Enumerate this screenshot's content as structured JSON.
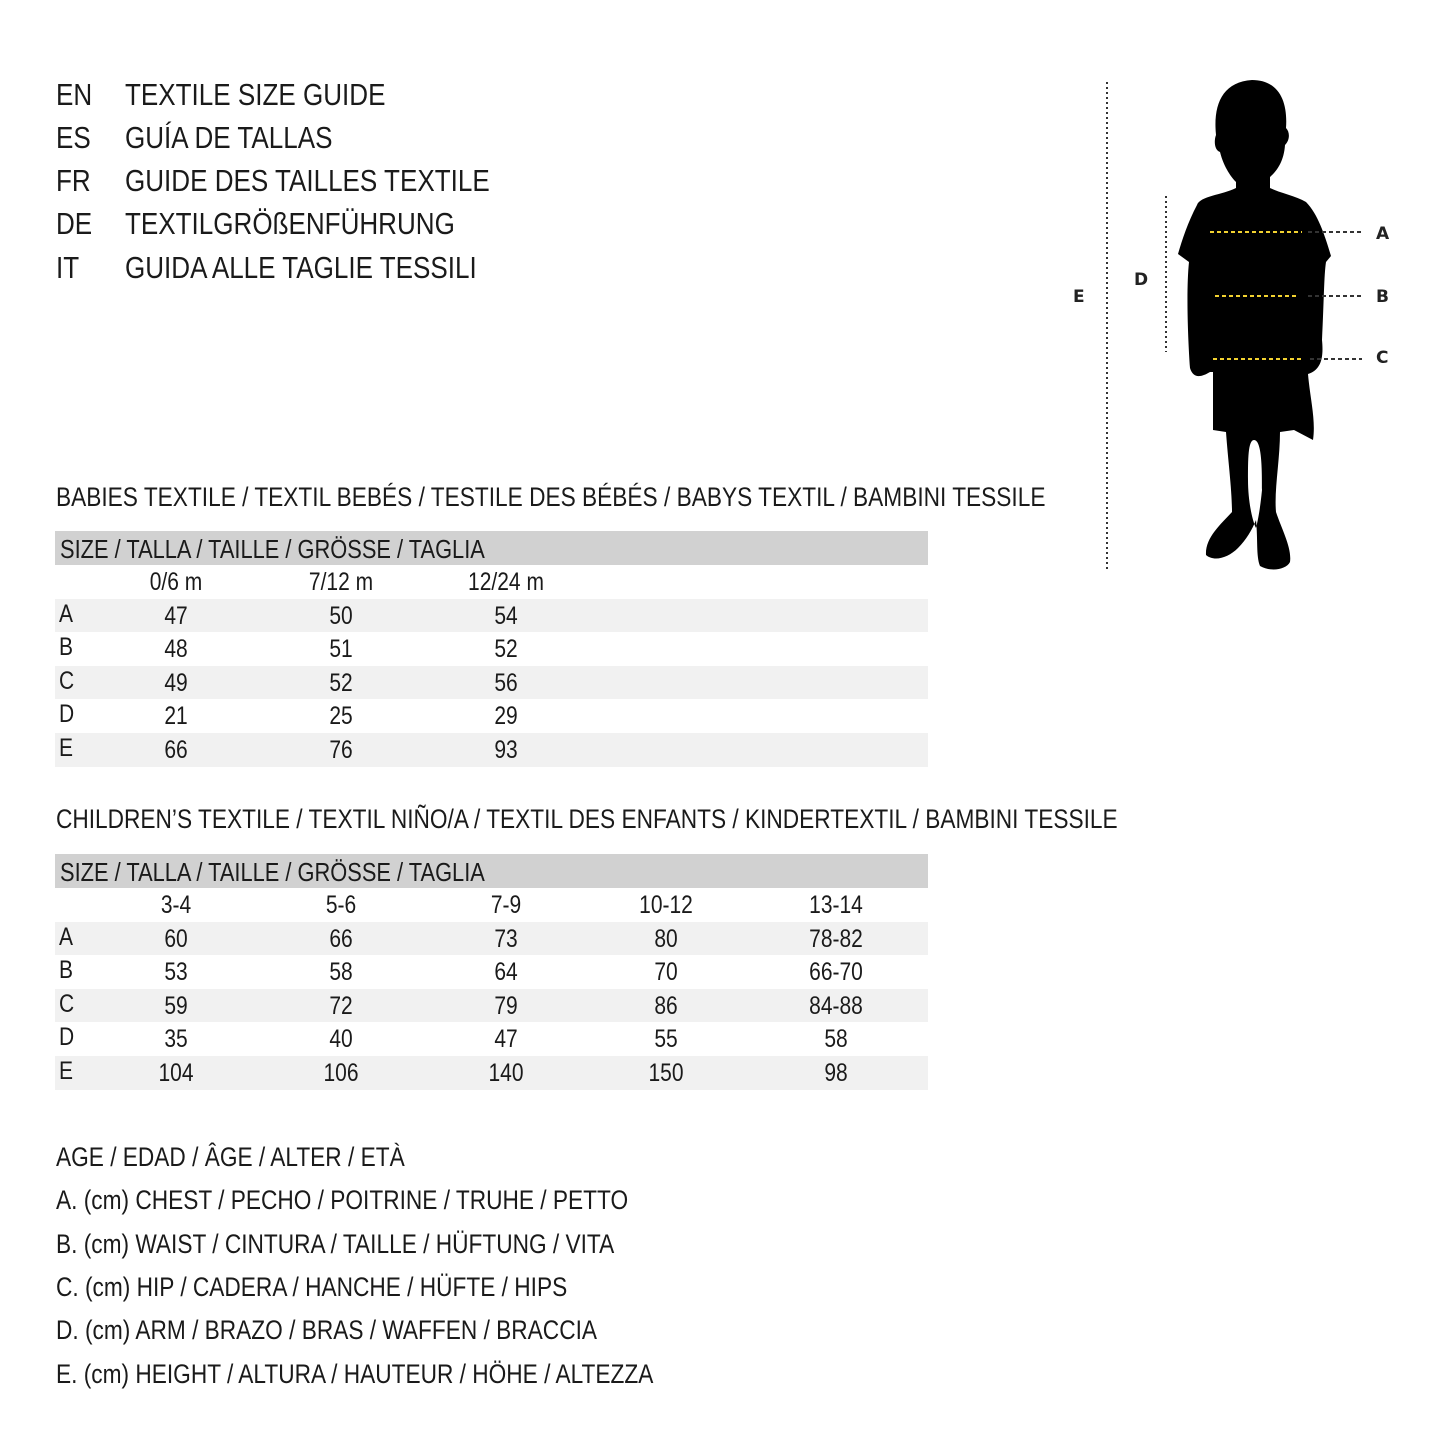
{
  "titles": [
    {
      "code": "EN",
      "text": "TEXTILE SIZE GUIDE"
    },
    {
      "code": "ES",
      "text": "GUÍA DE TALLAS"
    },
    {
      "code": "FR",
      "text": "GUIDE DES TAILLES TEXTILE"
    },
    {
      "code": "DE",
      "text": "TEXTILGRÖßENFÜHRUNG"
    },
    {
      "code": "IT",
      "text": "GUIDA ALLE TAGLIE TESSILI"
    }
  ],
  "figure": {
    "labels": {
      "a": "A",
      "b": "B",
      "c": "C",
      "d": "D",
      "e": "E"
    },
    "accent_color": "#f2d230"
  },
  "babies": {
    "heading": "BABIES TEXTILE / TEXTIL BEBÉS / TESTILE DES BÉBÉS / BABYS TEXTIL / BAMBINI TESSILE",
    "size_header": "SIZE / TALLA / TAILLE / GRÖSSE / TAGLIA",
    "columns": [
      "0/6 m",
      "7/12 m",
      "12/24 m"
    ],
    "rows": [
      {
        "label": "A",
        "values": [
          "47",
          "50",
          "54"
        ]
      },
      {
        "label": "B",
        "values": [
          "48",
          "51",
          "52"
        ]
      },
      {
        "label": "C",
        "values": [
          "49",
          "52",
          "56"
        ]
      },
      {
        "label": "D",
        "values": [
          "21",
          "25",
          "29"
        ]
      },
      {
        "label": "E",
        "values": [
          "66",
          "76",
          "93"
        ]
      }
    ]
  },
  "children": {
    "heading": "CHILDREN’S TEXTILE / TEXTIL NIÑO/A / TEXTIL DES ENFANTS / KINDERTEXTIL / BAMBINI TESSILE",
    "size_header": "SIZE / TALLA / TAILLE / GRÖSSE / TAGLIA",
    "columns": [
      "3-4",
      "5-6",
      "7-9",
      "10-12",
      "13-14"
    ],
    "rows": [
      {
        "label": "A",
        "values": [
          "60",
          "66",
          "73",
          "80",
          "78-82"
        ]
      },
      {
        "label": "B",
        "values": [
          "53",
          "58",
          "64",
          "70",
          "66-70"
        ]
      },
      {
        "label": "C",
        "values": [
          "59",
          "72",
          "79",
          "86",
          "84-88"
        ]
      },
      {
        "label": "D",
        "values": [
          "35",
          "40",
          "47",
          "55",
          "58"
        ]
      },
      {
        "label": "E",
        "values": [
          "104",
          "106",
          "140",
          "150",
          "98"
        ]
      }
    ]
  },
  "legend": [
    "AGE / EDAD / ÂGE / ALTER / ETÀ",
    "A. (cm) CHEST / PECHO / POITRINE / TRUHE / PETTO",
    "B. (cm) WAIST / CINTURA / TAILLE / HÜFTUNG / VITA",
    "C. (cm) HIP / CADERA / HANCHE / HÜFTE / HIPS",
    "D. (cm) ARM / BRAZO / BRAS / WAFFEN / BRACCIA",
    "E. (cm) HEIGHT / ALTURA / HAUTEUR / HÖHE / ALTEZZA"
  ]
}
